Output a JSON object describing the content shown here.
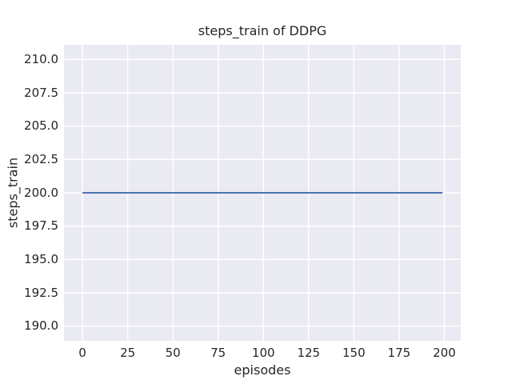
{
  "chart_data": {
    "type": "line",
    "title": "steps_train of DDPG",
    "xlabel": "episodes",
    "ylabel": "steps_train",
    "xlim": [
      -10.2,
      209.1
    ],
    "ylim": [
      188.9,
      211.1
    ],
    "x_ticks": [
      "0",
      "25",
      "50",
      "75",
      "100",
      "125",
      "150",
      "175",
      "200"
    ],
    "y_ticks": [
      "210.0",
      "207.5",
      "205.0",
      "202.5",
      "200.0",
      "197.5",
      "195.0",
      "192.5",
      "190.0"
    ],
    "grid": true,
    "legend": false,
    "plot_bg_color": "#eaeaf2",
    "grid_color": "#ffffff",
    "text_color": "#262626",
    "series": [
      {
        "name": "steps_train of DDPG",
        "color": "#4c72b0",
        "x": [
          0,
          199
        ],
        "y": [
          200.0,
          200.0
        ]
      }
    ]
  }
}
